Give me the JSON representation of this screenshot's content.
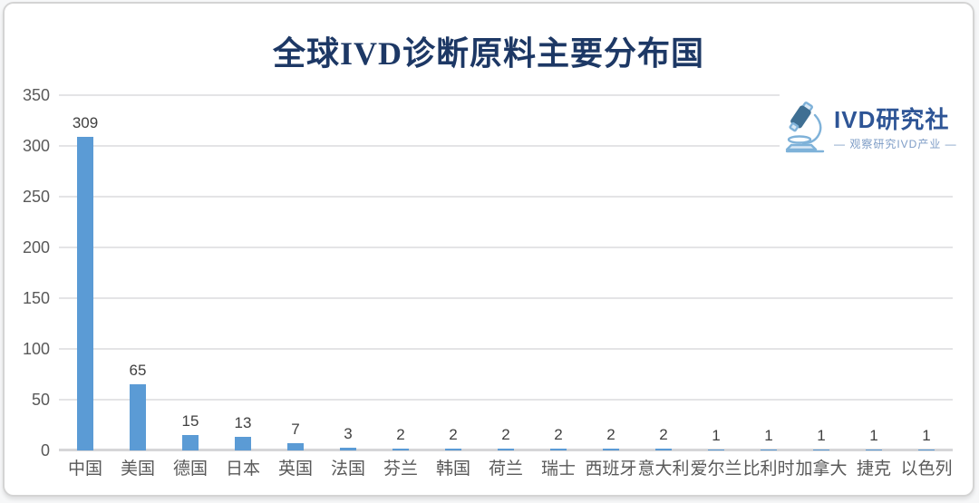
{
  "logo": {
    "name": "IVD研究社",
    "tagline": "— 观察研究IVD产业 —",
    "icon": "microscope-icon"
  },
  "colors": {
    "background": "#ffffff",
    "card_border": "#d4d4d4",
    "title": "#1d3865",
    "bar": "#5b9bd5",
    "gridline": "#e4e4e6",
    "axis_line": "#d6d6d8",
    "axis_text": "#595959",
    "value_label_text": "#404040",
    "logo_text": "#2e5596",
    "logo_tagline": "#7d9cc6",
    "logo_icon_dark": "#3f6f93",
    "logo_icon_light": "#7fb2d9",
    "logo_icon_fill": "#d9e8f5"
  },
  "chart_data": {
    "type": "bar",
    "title": "全球IVD诊断原料主要分布国",
    "categories": [
      "中国",
      "美国",
      "德国",
      "日本",
      "英国",
      "法国",
      "芬兰",
      "韩国",
      "荷兰",
      "瑞士",
      "西班牙",
      "意大利",
      "爱尔兰",
      "比利时",
      "加拿大",
      "捷克",
      "以色列"
    ],
    "values": [
      309,
      65,
      15,
      13,
      7,
      3,
      2,
      2,
      2,
      2,
      2,
      2,
      1,
      1,
      1,
      1,
      1
    ],
    "xlabel": "",
    "ylabel": "",
    "ylim": [
      0,
      350
    ],
    "yticks": [
      0,
      50,
      100,
      150,
      200,
      250,
      300,
      350
    ],
    "grid": true,
    "legend": false,
    "data_labels": true,
    "bar_color": "#5b9bd5"
  }
}
